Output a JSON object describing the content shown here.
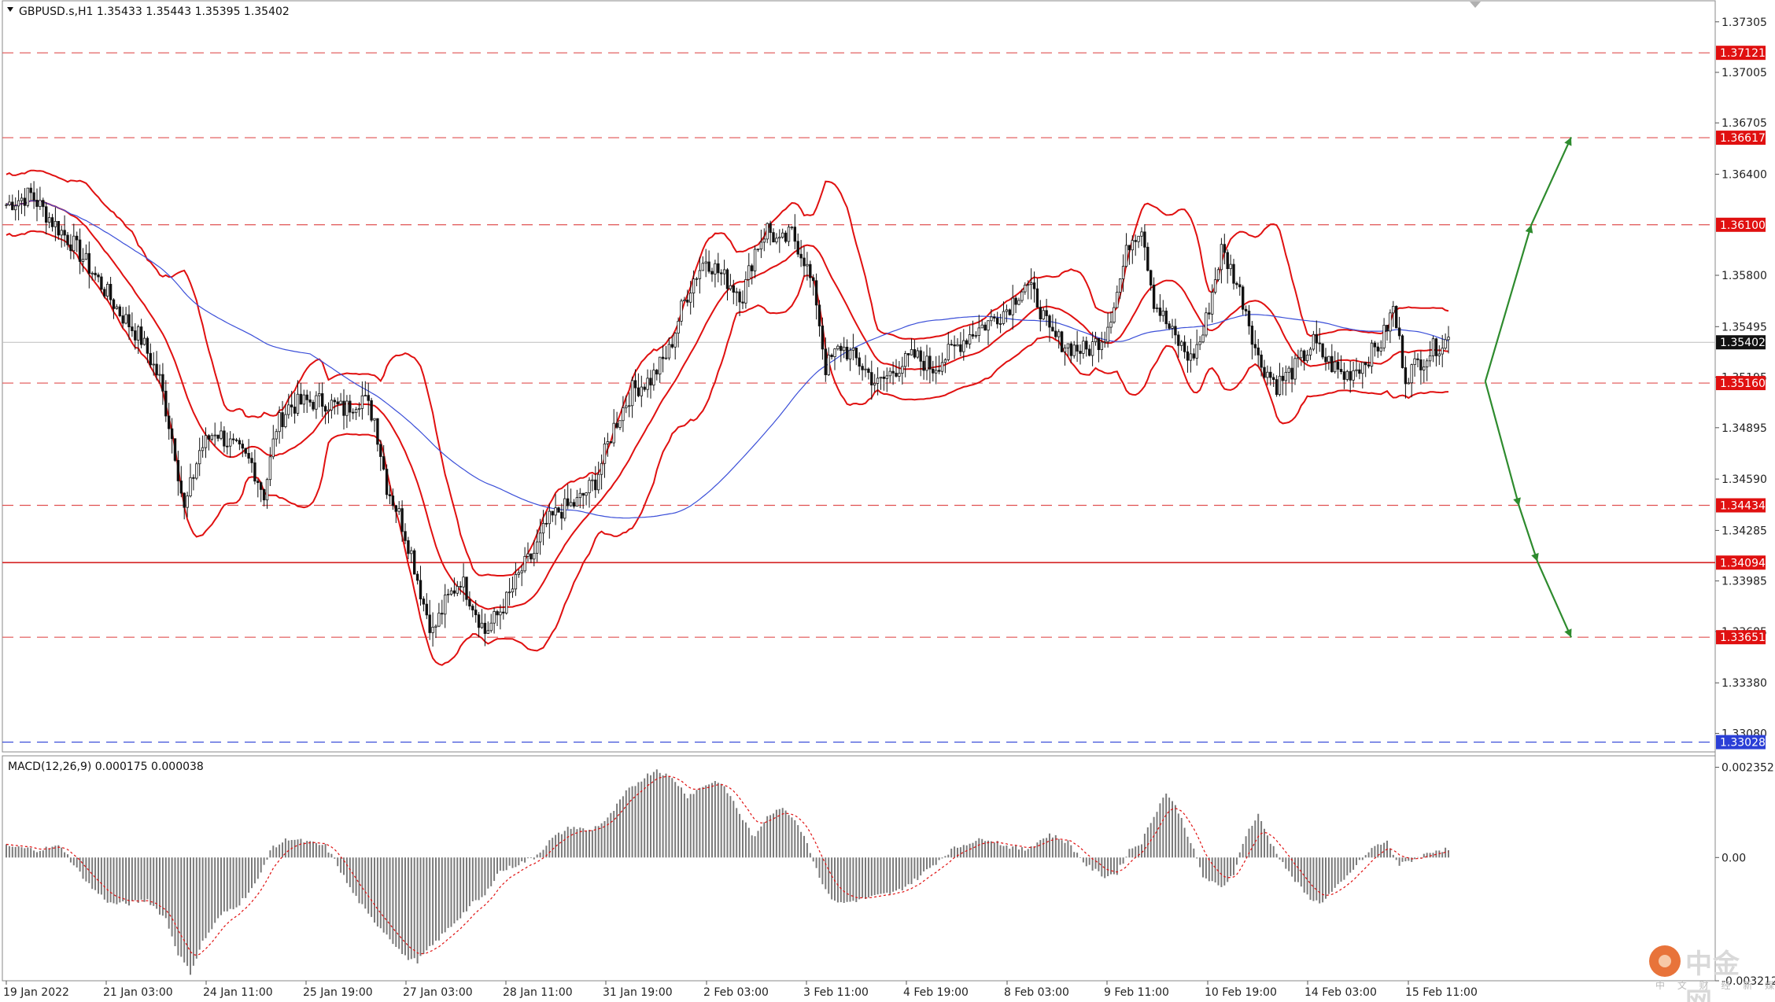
{
  "chart_data": [
    {
      "type": "candlestick",
      "title": "GBPUSD.s,H1  1.35433 1.35443 1.35395 1.35402",
      "symbol": "GBPUSD.s",
      "timeframe": "H1",
      "ohlc": {
        "open": 1.35433,
        "high": 1.35443,
        "low": 1.35395,
        "close": 1.35402
      },
      "ylim": [
        1.3297,
        1.3743
      ],
      "y_ticks": [
        "1.37305",
        "1.37005",
        "1.36705",
        "1.36400",
        "1.35800",
        "1.35495",
        "1.35195",
        "1.34895",
        "1.34590",
        "1.34285",
        "1.33985",
        "1.33685",
        "1.33380",
        "1.33080"
      ],
      "x_labels": [
        "19 Jan 2022",
        "21 Jan 03:00",
        "24 Jan 11:00",
        "25 Jan 19:00",
        "27 Jan 03:00",
        "28 Jan 11:00",
        "31 Jan 19:00",
        "2 Feb 03:00",
        "3 Feb 11:00",
        "4 Feb 19:00",
        "8 Feb 03:00",
        "9 Feb 11:00",
        "10 Feb 19:00",
        "14 Feb 03:00",
        "15 Feb 11:00"
      ],
      "current_price": "1.35402",
      "levels": [
        {
          "value": 1.37121,
          "label": "1.37121",
          "style": "dashed",
          "color": "#e05050"
        },
        {
          "value": 1.36617,
          "label": "1.36617",
          "style": "dashed",
          "color": "#e05050"
        },
        {
          "value": 1.361,
          "label": "1.36100",
          "style": "dashed",
          "color": "#e05050"
        },
        {
          "value": 1.3516,
          "label": "1.35160",
          "style": "dashed",
          "color": "#e05050"
        },
        {
          "value": 1.34434,
          "label": "1.34434",
          "style": "dashed",
          "color": "#e05050"
        },
        {
          "value": 1.34094,
          "label": "1.34094",
          "style": "solid",
          "color": "#d42020"
        },
        {
          "value": 1.33651,
          "label": "1.33651",
          "style": "dashed",
          "color": "#e05050"
        },
        {
          "value": 1.33028,
          "label": "1.33028",
          "style": "dashed",
          "color": "#2b3fd6"
        }
      ],
      "close_path": [
        [
          0,
          1.3622
        ],
        [
          8,
          1.3628
        ],
        [
          15,
          1.3612
        ],
        [
          22,
          1.3598
        ],
        [
          30,
          1.3577
        ],
        [
          37,
          1.3558
        ],
        [
          44,
          1.3542
        ],
        [
          50,
          1.3518
        ],
        [
          55,
          1.3475
        ],
        [
          58,
          1.344
        ],
        [
          63,
          1.3476
        ],
        [
          68,
          1.3488
        ],
        [
          74,
          1.3478
        ],
        [
          80,
          1.3468
        ],
        [
          84,
          1.345
        ],
        [
          88,
          1.349
        ],
        [
          92,
          1.3502
        ],
        [
          98,
          1.3505
        ],
        [
          104,
          1.3505
        ],
        [
          110,
          1.35
        ],
        [
          116,
          1.3508
        ],
        [
          120,
          1.3495
        ],
        [
          124,
          1.3455
        ],
        [
          128,
          1.3438
        ],
        [
          132,
          1.3415
        ],
        [
          136,
          1.3385
        ],
        [
          139,
          1.3368
        ],
        [
          143,
          1.3385
        ],
        [
          148,
          1.34
        ],
        [
          152,
          1.3385
        ],
        [
          156,
          1.3368
        ],
        [
          160,
          1.3378
        ],
        [
          164,
          1.339
        ],
        [
          168,
          1.3405
        ],
        [
          172,
          1.3415
        ],
        [
          176,
          1.3432
        ],
        [
          180,
          1.344
        ],
        [
          186,
          1.3445
        ],
        [
          192,
          1.3458
        ],
        [
          198,
          1.349
        ],
        [
          204,
          1.3512
        ],
        [
          210,
          1.3518
        ],
        [
          216,
          1.3535
        ],
        [
          220,
          1.356
        ],
        [
          224,
          1.3578
        ],
        [
          228,
          1.359
        ],
        [
          232,
          1.3582
        ],
        [
          236,
          1.3575
        ],
        [
          240,
          1.3568
        ],
        [
          244,
          1.3595
        ],
        [
          248,
          1.3608
        ],
        [
          252,
          1.3598
        ],
        [
          256,
          1.3605
        ],
        [
          260,
          1.359
        ],
        [
          264,
          1.3565
        ],
        [
          267,
          1.3525
        ],
        [
          272,
          1.3538
        ],
        [
          278,
          1.3528
        ],
        [
          284,
          1.3515
        ],
        [
          290,
          1.3525
        ],
        [
          296,
          1.3532
        ],
        [
          302,
          1.3525
        ],
        [
          308,
          1.3535
        ],
        [
          314,
          1.3545
        ],
        [
          320,
          1.3552
        ],
        [
          326,
          1.356
        ],
        [
          332,
          1.3575
        ],
        [
          336,
          1.3565
        ],
        [
          340,
          1.3545
        ],
        [
          346,
          1.3538
        ],
        [
          352,
          1.3535
        ],
        [
          358,
          1.3545
        ],
        [
          362,
          1.357
        ],
        [
          366,
          1.36
        ],
        [
          370,
          1.361
        ],
        [
          374,
          1.3565
        ],
        [
          380,
          1.3545
        ],
        [
          386,
          1.353
        ],
        [
          390,
          1.3545
        ],
        [
          396,
          1.3595
        ],
        [
          400,
          1.358
        ],
        [
          404,
          1.356
        ],
        [
          408,
          1.353
        ],
        [
          414,
          1.3515
        ],
        [
          420,
          1.3525
        ],
        [
          426,
          1.354
        ],
        [
          430,
          1.353
        ],
        [
          436,
          1.352
        ],
        [
          442,
          1.3528
        ],
        [
          448,
          1.354
        ],
        [
          452,
          1.356
        ],
        [
          456,
          1.352
        ],
        [
          460,
          1.3528
        ],
        [
          466,
          1.3538
        ],
        [
          470,
          1.3542
        ]
      ],
      "indicators": {
        "bollinger": "red",
        "moving_average": "blue"
      },
      "projection": {
        "start": [
          482,
          1.3517
        ],
        "up": [
          [
            497,
            1.361
          ],
          [
            510,
            1.3662
          ]
        ],
        "down": [
          [
            493,
            1.3443
          ],
          [
            499,
            1.341
          ],
          [
            510,
            1.3365
          ]
        ],
        "color": "#2e8b2e"
      }
    },
    {
      "type": "histogram",
      "title": "MACD(12,26,9) 0.000175 0.000038",
      "indicator": "MACD(12,26,9)",
      "macd": 0.000175,
      "signal": 3.8e-05,
      "ylim": [
        -0.003212,
        0.00265
      ],
      "y_ticks": [
        "0.002352",
        "0.00",
        "-0.003212"
      ],
      "values_path": [
        [
          0,
          0.0003
        ],
        [
          10,
          0.0002
        ],
        [
          18,
          0.0003
        ],
        [
          22,
          -0.0002
        ],
        [
          28,
          -0.0008
        ],
        [
          34,
          -0.0012
        ],
        [
          40,
          -0.0012
        ],
        [
          46,
          -0.0011
        ],
        [
          52,
          -0.0016
        ],
        [
          56,
          -0.0025
        ],
        [
          60,
          -0.003
        ],
        [
          64,
          -0.0022
        ],
        [
          70,
          -0.0015
        ],
        [
          76,
          -0.0012
        ],
        [
          82,
          -0.0006
        ],
        [
          86,
          0.0002
        ],
        [
          92,
          0.0005
        ],
        [
          98,
          0.0004
        ],
        [
          104,
          0.0003
        ],
        [
          108,
          -0.0002
        ],
        [
          112,
          -0.0008
        ],
        [
          118,
          -0.0015
        ],
        [
          124,
          -0.002
        ],
        [
          130,
          -0.0026
        ],
        [
          134,
          -0.0027
        ],
        [
          140,
          -0.0022
        ],
        [
          146,
          -0.0017
        ],
        [
          152,
          -0.0012
        ],
        [
          156,
          -0.001
        ],
        [
          160,
          -0.0004
        ],
        [
          166,
          -0.0002
        ],
        [
          172,
          0.0
        ],
        [
          178,
          0.0005
        ],
        [
          184,
          0.0008
        ],
        [
          190,
          0.0007
        ],
        [
          196,
          0.001
        ],
        [
          202,
          0.0017
        ],
        [
          208,
          0.0021
        ],
        [
          212,
          0.0023
        ],
        [
          218,
          0.002
        ],
        [
          222,
          0.0016
        ],
        [
          228,
          0.0019
        ],
        [
          232,
          0.002
        ],
        [
          236,
          0.0016
        ],
        [
          240,
          0.001
        ],
        [
          244,
          0.0005
        ],
        [
          248,
          0.0011
        ],
        [
          252,
          0.0013
        ],
        [
          256,
          0.0011
        ],
        [
          260,
          0.0006
        ],
        [
          264,
          -0.0003
        ],
        [
          268,
          -0.001
        ],
        [
          272,
          -0.0012
        ],
        [
          278,
          -0.0011
        ],
        [
          284,
          -0.001
        ],
        [
          290,
          -0.0009
        ],
        [
          296,
          -0.0006
        ],
        [
          302,
          -0.0002
        ],
        [
          308,
          0.0002
        ],
        [
          314,
          0.0004
        ],
        [
          320,
          0.0005
        ],
        [
          326,
          0.0003
        ],
        [
          332,
          0.0002
        ],
        [
          336,
          0.0004
        ],
        [
          340,
          0.0006
        ],
        [
          346,
          0.0004
        ],
        [
          352,
          -0.0002
        ],
        [
          358,
          -0.0005
        ],
        [
          362,
          -0.0004
        ],
        [
          366,
          0.0002
        ],
        [
          370,
          0.0004
        ],
        [
          374,
          0.0011
        ],
        [
          378,
          0.0017
        ],
        [
          382,
          0.0012
        ],
        [
          386,
          0.0004
        ],
        [
          390,
          -0.0005
        ],
        [
          396,
          -0.0008
        ],
        [
          400,
          -0.0004
        ],
        [
          404,
          0.0006
        ],
        [
          408,
          0.0011
        ],
        [
          412,
          0.0004
        ],
        [
          418,
          -0.0004
        ],
        [
          424,
          -0.001
        ],
        [
          428,
          -0.0012
        ],
        [
          432,
          -0.0009
        ],
        [
          436,
          -0.0006
        ],
        [
          440,
          -0.0002
        ],
        [
          446,
          0.0003
        ],
        [
          450,
          0.0004
        ],
        [
          454,
          -0.0002
        ],
        [
          460,
          0.0
        ],
        [
          466,
          0.0002
        ],
        [
          470,
          0.0002
        ]
      ]
    }
  ],
  "branding": {
    "name": "中金网",
    "sub": "中 文 财 经 新 媒 体"
  }
}
